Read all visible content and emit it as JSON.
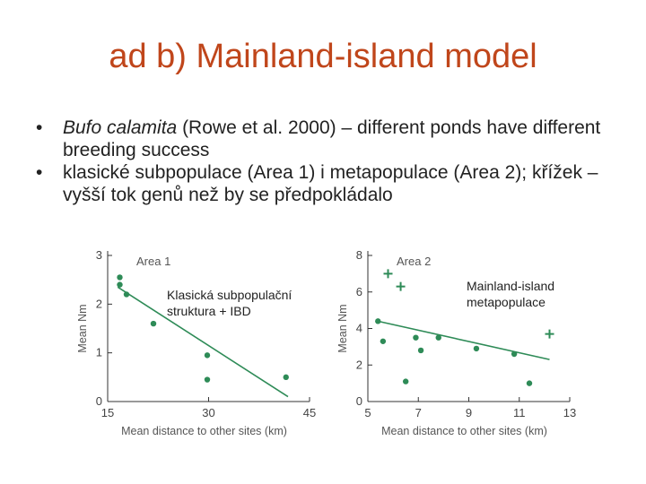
{
  "title": "ad b) Mainland-island model",
  "bullets": [
    {
      "italic": "Bufo calamita",
      "text": " (Rowe et al. 2000) – different ponds have different breeding success"
    },
    {
      "italic": "",
      "text": "klasické subpopulace (Area 1) i metapopulace (Area 2); křížek – vyšší tok genů než by se předpokládalo"
    }
  ],
  "bullet_symbol": "•",
  "annotations": {
    "area1": "Klasická subpopulační struktura + IBD",
    "area2": "Mainland-island metapopulace"
  },
  "chart_data": [
    {
      "type": "scatter",
      "title": "Area 1",
      "xlabel": "Mean distance to other sites (km)",
      "ylabel": "Mean Nm",
      "xlim": [
        15,
        45
      ],
      "ylim": [
        0,
        3
      ],
      "xticks": [
        15,
        30,
        45
      ],
      "yticks": [
        0,
        1,
        2,
        3
      ],
      "points": [
        {
          "x": 16.8,
          "y": 2.55,
          "marker": "dot"
        },
        {
          "x": 16.8,
          "y": 2.4,
          "marker": "dot"
        },
        {
          "x": 17.8,
          "y": 2.2,
          "marker": "dot"
        },
        {
          "x": 21.8,
          "y": 1.6,
          "marker": "dot"
        },
        {
          "x": 29.8,
          "y": 0.95,
          "marker": "dot"
        },
        {
          "x": 29.8,
          "y": 0.45,
          "marker": "dot"
        },
        {
          "x": 41.5,
          "y": 0.5,
          "marker": "dot"
        }
      ],
      "trend": [
        [
          16.5,
          2.35
        ],
        [
          41.8,
          0.1
        ]
      ],
      "color": "#2e8b57"
    },
    {
      "type": "scatter",
      "title": "Area 2",
      "xlabel": "Mean distance to other sites (km)",
      "ylabel": "Mean Nm",
      "xlim": [
        5,
        13
      ],
      "ylim": [
        0,
        8
      ],
      "xticks": [
        5,
        7,
        9,
        11,
        13
      ],
      "yticks": [
        0,
        2,
        4,
        6,
        8
      ],
      "points": [
        {
          "x": 5.4,
          "y": 4.4,
          "marker": "dot"
        },
        {
          "x": 5.6,
          "y": 3.3,
          "marker": "dot"
        },
        {
          "x": 5.8,
          "y": 7.0,
          "marker": "cross"
        },
        {
          "x": 6.3,
          "y": 6.3,
          "marker": "cross"
        },
        {
          "x": 6.5,
          "y": 1.1,
          "marker": "dot"
        },
        {
          "x": 6.9,
          "y": 3.5,
          "marker": "dot"
        },
        {
          "x": 7.1,
          "y": 2.8,
          "marker": "dot"
        },
        {
          "x": 7.8,
          "y": 3.5,
          "marker": "dot"
        },
        {
          "x": 9.3,
          "y": 2.9,
          "marker": "dot"
        },
        {
          "x": 10.8,
          "y": 2.6,
          "marker": "dot"
        },
        {
          "x": 11.4,
          "y": 1.0,
          "marker": "dot"
        },
        {
          "x": 12.2,
          "y": 3.7,
          "marker": "cross"
        }
      ],
      "trend": [
        [
          5.4,
          4.4
        ],
        [
          12.2,
          2.3
        ]
      ],
      "color": "#2e8b57"
    }
  ]
}
